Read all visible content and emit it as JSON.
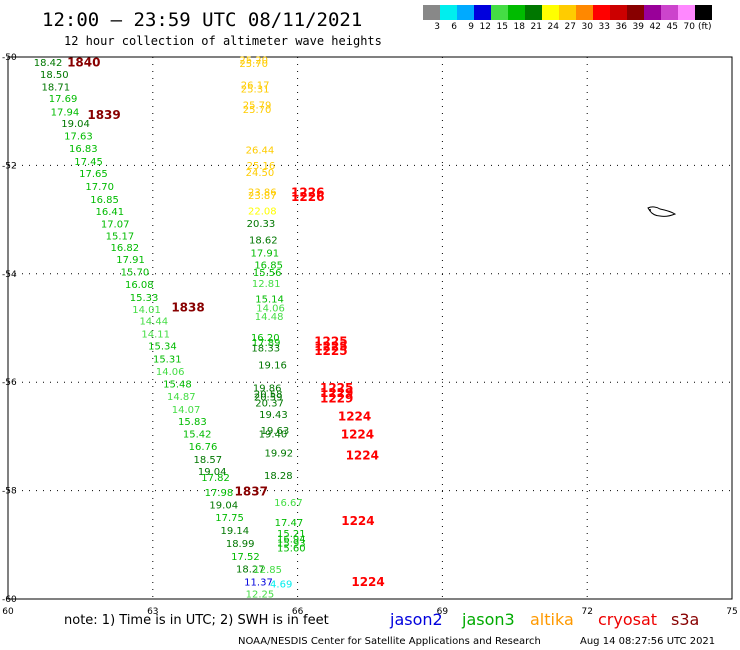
{
  "header": {
    "title": "12:00 – 23:59 UTC 08/11/2021",
    "subtitle": "12 hour collection of altimeter wave heights"
  },
  "color_scale": {
    "unit": "(ft)",
    "bins": [
      {
        "label": "3",
        "color": "#888888"
      },
      {
        "label": "6",
        "color": "#00eeee"
      },
      {
        "label": "9",
        "color": "#00aaff"
      },
      {
        "label": "12",
        "color": "#0000dd"
      },
      {
        "label": "15",
        "color": "#44dd44"
      },
      {
        "label": "18",
        "color": "#00bb00"
      },
      {
        "label": "21",
        "color": "#007700"
      },
      {
        "label": "24",
        "color": "#ffff00"
      },
      {
        "label": "27",
        "color": "#ffcc00"
      },
      {
        "label": "30",
        "color": "#ff8800"
      },
      {
        "label": "33",
        "color": "#ff0000"
      },
      {
        "label": "36",
        "color": "#cc0000"
      },
      {
        "label": "39",
        "color": "#880000"
      },
      {
        "label": "42",
        "color": "#990099"
      },
      {
        "label": "45",
        "color": "#cc44cc"
      },
      {
        "label": "70",
        "color": "#ff88ff"
      },
      {
        "label": "",
        "color": "#000000"
      }
    ]
  },
  "footer": {
    "note": "note: 1) Time is in UTC; 2) SWH is in feet",
    "credit": "NOAA/NESDIS Center for Satellite Applications and Research",
    "timestamp": "Aug 14 08:27:56 UTC 2021",
    "satellites": [
      {
        "name": "jason2",
        "color": "#0000dd"
      },
      {
        "name": "jason3",
        "color": "#00aa00"
      },
      {
        "name": "altika",
        "color": "#ff9900"
      },
      {
        "name": "cryosat",
        "color": "#ee0000"
      },
      {
        "name": "s3a",
        "color": "#880000"
      }
    ]
  },
  "chart_data": {
    "type": "scatter",
    "title": "12:00 – 23:59 UTC 08/11/2021",
    "subtitle": "12 hour collection of altimeter wave heights",
    "xlabel": "",
    "ylabel": "",
    "xlim": [
      60,
      75
    ],
    "ylim": [
      -60,
      -50
    ],
    "xticks": [
      "60",
      "63",
      "66",
      "69",
      "72",
      "75"
    ],
    "yticks": [
      "-50",
      "-52",
      "-54",
      "-56",
      "-58",
      "-60"
    ],
    "grid": true,
    "points": [
      {
        "lon": 60.83,
        "lat": -50.09,
        "text": "18.42",
        "color": "#007700"
      },
      {
        "lon": 60.96,
        "lat": -50.31,
        "text": "18.50",
        "color": "#007700"
      },
      {
        "lon": 60.99,
        "lat": -50.54,
        "text": "18.71",
        "color": "#007700"
      },
      {
        "lon": 61.14,
        "lat": -50.76,
        "text": "17.69",
        "color": "#00bb00"
      },
      {
        "lon": 61.18,
        "lat": -51.01,
        "text": "17.94",
        "color": "#00bb00"
      },
      {
        "lon": 61.4,
        "lat": -51.22,
        "text": "19.04",
        "color": "#007700"
      },
      {
        "lon": 61.46,
        "lat": -51.45,
        "text": "17.63",
        "color": "#00bb00"
      },
      {
        "lon": 61.56,
        "lat": -51.68,
        "text": "16.83",
        "color": "#00bb00"
      },
      {
        "lon": 61.67,
        "lat": -51.92,
        "text": "17.45",
        "color": "#00bb00"
      },
      {
        "lon": 61.77,
        "lat": -52.14,
        "text": "17.65",
        "color": "#00bb00"
      },
      {
        "lon": 61.9,
        "lat": -52.38,
        "text": "17.70",
        "color": "#00bb00"
      },
      {
        "lon": 62.0,
        "lat": -52.62,
        "text": "16.85",
        "color": "#00bb00"
      },
      {
        "lon": 62.11,
        "lat": -52.84,
        "text": "16.41",
        "color": "#00bb00"
      },
      {
        "lon": 62.22,
        "lat": -53.07,
        "text": "17.07",
        "color": "#00bb00"
      },
      {
        "lon": 62.32,
        "lat": -53.29,
        "text": "15.17",
        "color": "#00bb00"
      },
      {
        "lon": 62.42,
        "lat": -53.51,
        "text": "16.82",
        "color": "#00bb00"
      },
      {
        "lon": 62.54,
        "lat": -53.73,
        "text": "17.91",
        "color": "#00bb00"
      },
      {
        "lon": 62.63,
        "lat": -53.96,
        "text": "15.70",
        "color": "#00bb00"
      },
      {
        "lon": 62.72,
        "lat": -54.19,
        "text": "16.08",
        "color": "#00bb00"
      },
      {
        "lon": 62.82,
        "lat": -54.43,
        "text": "15.33",
        "color": "#00bb00"
      },
      {
        "lon": 62.87,
        "lat": -54.65,
        "text": "14.01",
        "color": "#44dd44"
      },
      {
        "lon": 63.02,
        "lat": -54.86,
        "text": "14.44",
        "color": "#44dd44"
      },
      {
        "lon": 63.06,
        "lat": -55.1,
        "text": "14.11",
        "color": "#44dd44"
      },
      {
        "lon": 63.2,
        "lat": -55.32,
        "text": "15.34",
        "color": "#00bb00"
      },
      {
        "lon": 63.3,
        "lat": -55.56,
        "text": "15.31",
        "color": "#00bb00"
      },
      {
        "lon": 63.36,
        "lat": -55.79,
        "text": "14.06",
        "color": "#44dd44"
      },
      {
        "lon": 63.51,
        "lat": -56.02,
        "text": "15.48",
        "color": "#00bb00"
      },
      {
        "lon": 63.59,
        "lat": -56.25,
        "text": "14.87",
        "color": "#44dd44"
      },
      {
        "lon": 63.69,
        "lat": -56.49,
        "text": "14.07",
        "color": "#44dd44"
      },
      {
        "lon": 63.82,
        "lat": -56.72,
        "text": "15.83",
        "color": "#00bb00"
      },
      {
        "lon": 63.92,
        "lat": -56.95,
        "text": "15.42",
        "color": "#00bb00"
      },
      {
        "lon": 64.04,
        "lat": -57.18,
        "text": "16.76",
        "color": "#00bb00"
      },
      {
        "lon": 64.14,
        "lat": -57.42,
        "text": "18.57",
        "color": "#007700"
      },
      {
        "lon": 64.23,
        "lat": -57.64,
        "text": "19.04",
        "color": "#007700"
      },
      {
        "lon": 64.3,
        "lat": -57.75,
        "text": "17.82",
        "color": "#00bb00"
      },
      {
        "lon": 64.37,
        "lat": -58.03,
        "text": "17.98",
        "color": "#00bb00"
      },
      {
        "lon": 64.47,
        "lat": -58.26,
        "text": "19.04",
        "color": "#007700"
      },
      {
        "lon": 64.59,
        "lat": -58.49,
        "text": "17.75",
        "color": "#00bb00"
      },
      {
        "lon": 64.7,
        "lat": -58.73,
        "text": "19.14",
        "color": "#007700"
      },
      {
        "lon": 64.81,
        "lat": -58.97,
        "text": "18.99",
        "color": "#007700"
      },
      {
        "lon": 64.92,
        "lat": -59.21,
        "text": "17.52",
        "color": "#00bb00"
      },
      {
        "lon": 65.02,
        "lat": -59.44,
        "text": "18.27",
        "color": "#007700"
      },
      {
        "lon": 65.19,
        "lat": -59.68,
        "text": "11.37",
        "color": "#0000dd"
      },
      {
        "lon": 65.22,
        "lat": -59.9,
        "text": "12.25",
        "color": "#44dd44"
      },
      {
        "lon": 65.38,
        "lat": -59.45,
        "text": "12.85",
        "color": "#44dd44"
      },
      {
        "lon": 65.66,
        "lat": -59.71,
        "text": "4.69",
        "color": "#00eeee"
      },
      {
        "lon": 65.09,
        "lat": -50.05,
        "text": "25.20",
        "color": "#ffcc00"
      },
      {
        "lon": 65.09,
        "lat": -50.11,
        "text": "25.70",
        "color": "#ffcc00"
      },
      {
        "lon": 65.12,
        "lat": -50.51,
        "text": "26.17",
        "color": "#ffcc00"
      },
      {
        "lon": 65.12,
        "lat": -50.58,
        "text": "25.31",
        "color": "#ffcc00"
      },
      {
        "lon": 65.16,
        "lat": -50.88,
        "text": "25.79",
        "color": "#ffcc00"
      },
      {
        "lon": 65.16,
        "lat": -50.96,
        "text": "25.70",
        "color": "#ffcc00"
      },
      {
        "lon": 65.22,
        "lat": -51.71,
        "text": "26.44",
        "color": "#ffcc00"
      },
      {
        "lon": 65.24,
        "lat": -51.99,
        "text": "25.16",
        "color": "#ffcc00"
      },
      {
        "lon": 65.22,
        "lat": -52.12,
        "text": "24.50",
        "color": "#ffcc00"
      },
      {
        "lon": 65.27,
        "lat": -52.48,
        "text": "23.86",
        "color": "#ffcc00"
      },
      {
        "lon": 65.27,
        "lat": -52.55,
        "text": "23.87",
        "color": "#ffcc00"
      },
      {
        "lon": 65.27,
        "lat": -52.83,
        "text": "22.08",
        "color": "#ffff00"
      },
      {
        "lon": 65.24,
        "lat": -53.06,
        "text": "20.33",
        "color": "#007700"
      },
      {
        "lon": 65.29,
        "lat": -53.37,
        "text": "18.62",
        "color": "#007700"
      },
      {
        "lon": 65.32,
        "lat": -53.61,
        "text": "17.91",
        "color": "#00bb00"
      },
      {
        "lon": 65.4,
        "lat": -53.83,
        "text": "16.85",
        "color": "#00bb00"
      },
      {
        "lon": 65.37,
        "lat": -53.97,
        "text": "15.56",
        "color": "#00bb00"
      },
      {
        "lon": 65.35,
        "lat": -54.17,
        "text": "12.81",
        "color": "#44dd44"
      },
      {
        "lon": 65.42,
        "lat": -54.46,
        "text": "15.14",
        "color": "#00bb00"
      },
      {
        "lon": 65.44,
        "lat": -54.62,
        "text": "14.06",
        "color": "#44dd44"
      },
      {
        "lon": 65.41,
        "lat": -54.78,
        "text": "14.48",
        "color": "#44dd44"
      },
      {
        "lon": 65.33,
        "lat": -55.17,
        "text": "16.20",
        "color": "#00bb00"
      },
      {
        "lon": 65.35,
        "lat": -55.26,
        "text": "17.89",
        "color": "#00bb00"
      },
      {
        "lon": 65.34,
        "lat": -55.36,
        "text": "18.33",
        "color": "#007700"
      },
      {
        "lon": 65.48,
        "lat": -55.67,
        "text": "19.16",
        "color": "#007700"
      },
      {
        "lon": 65.37,
        "lat": -56.1,
        "text": "19.86",
        "color": "#007700"
      },
      {
        "lon": 65.39,
        "lat": -56.21,
        "text": "20.58",
        "color": "#007700"
      },
      {
        "lon": 65.39,
        "lat": -56.26,
        "text": "20.59",
        "color": "#007700"
      },
      {
        "lon": 65.42,
        "lat": -56.37,
        "text": "20.37",
        "color": "#007700"
      },
      {
        "lon": 65.5,
        "lat": -56.59,
        "text": "19.43",
        "color": "#007700"
      },
      {
        "lon": 65.53,
        "lat": -56.88,
        "text": "19.63",
        "color": "#007700"
      },
      {
        "lon": 65.49,
        "lat": -56.95,
        "text": "19.40",
        "color": "#007700"
      },
      {
        "lon": 65.61,
        "lat": -57.3,
        "text": "19.92",
        "color": "#007700"
      },
      {
        "lon": 65.6,
        "lat": -57.71,
        "text": "18.28",
        "color": "#007700"
      },
      {
        "lon": 65.81,
        "lat": -58.21,
        "text": "16.67",
        "color": "#44dd44"
      },
      {
        "lon": 65.82,
        "lat": -58.58,
        "text": "17.47",
        "color": "#00bb00"
      },
      {
        "lon": 65.87,
        "lat": -58.78,
        "text": "15.21",
        "color": "#00bb00"
      },
      {
        "lon": 65.87,
        "lat": -58.88,
        "text": "16.94",
        "color": "#00bb00"
      },
      {
        "lon": 65.87,
        "lat": -58.96,
        "text": "15.93",
        "color": "#00bb00"
      },
      {
        "lon": 65.87,
        "lat": -59.05,
        "text": "15.60",
        "color": "#00bb00"
      }
    ],
    "passes": [
      {
        "lon": 61.57,
        "lat": -50.08,
        "text": "1840",
        "color": "#880000"
      },
      {
        "lon": 61.99,
        "lat": -51.05,
        "text": "1839",
        "color": "#880000"
      },
      {
        "lon": 63.73,
        "lat": -54.6,
        "text": "1838",
        "color": "#880000"
      },
      {
        "lon": 65.04,
        "lat": -58.0,
        "text": "1837",
        "color": "#880000"
      },
      {
        "lon": 66.21,
        "lat": -52.48,
        "text": "1226",
        "color": "#ff0000"
      },
      {
        "lon": 66.21,
        "lat": -52.56,
        "text": "1226",
        "color": "#ff0000"
      },
      {
        "lon": 66.69,
        "lat": -55.23,
        "text": "1225",
        "color": "#ff0000"
      },
      {
        "lon": 66.69,
        "lat": -55.32,
        "text": "1225",
        "color": "#ff0000"
      },
      {
        "lon": 66.69,
        "lat": -55.41,
        "text": "1225",
        "color": "#ff0000"
      },
      {
        "lon": 66.81,
        "lat": -56.09,
        "text": "1225",
        "color": "#ff0000"
      },
      {
        "lon": 66.81,
        "lat": -56.18,
        "text": "1229",
        "color": "#ff0000"
      },
      {
        "lon": 66.81,
        "lat": -56.28,
        "text": "1229",
        "color": "#ff0000"
      },
      {
        "lon": 67.18,
        "lat": -56.61,
        "text": "1224",
        "color": "#ff0000"
      },
      {
        "lon": 67.24,
        "lat": -56.95,
        "text": "1224",
        "color": "#ff0000"
      },
      {
        "lon": 67.34,
        "lat": -57.33,
        "text": "1224",
        "color": "#ff0000"
      },
      {
        "lon": 67.25,
        "lat": -58.54,
        "text": "1224",
        "color": "#ff0000"
      },
      {
        "lon": 67.46,
        "lat": -59.67,
        "text": "1224",
        "color": "#ff0000"
      }
    ]
  }
}
